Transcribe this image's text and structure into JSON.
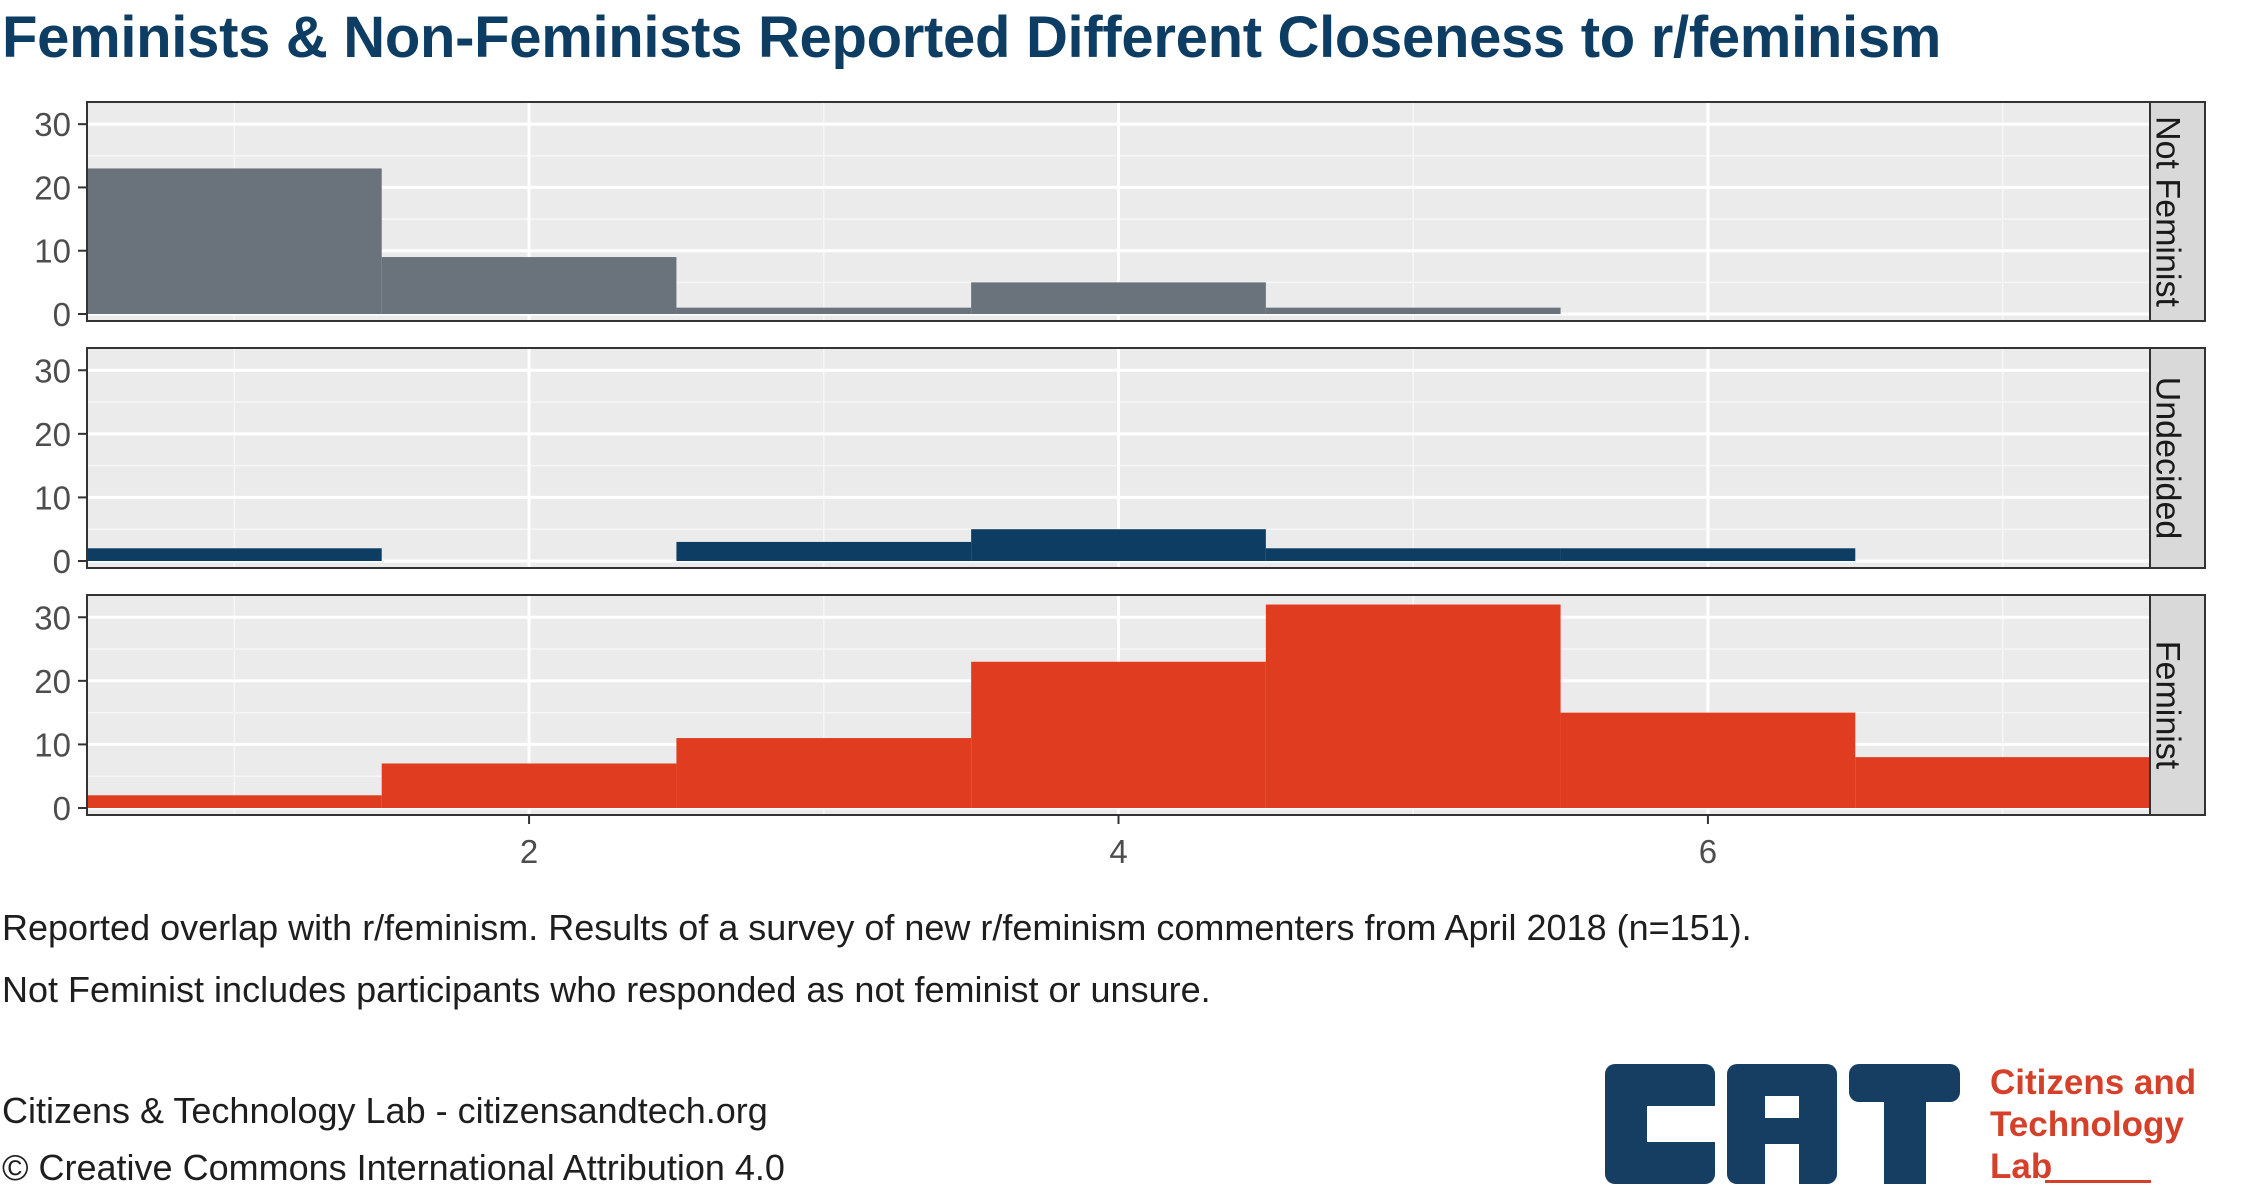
{
  "title": "Feminists & Non-Feminists Reported Different Closeness to r/feminism",
  "caption": [
    "Reported overlap with r/feminism. Results of a survey of new r/feminism commenters from April 2018 (n=151).",
    "Not Feminist includes participants who responded as not feminist or unsure."
  ],
  "credits": [
    "Citizens & Technology Lab - citizensandtech.org",
    "© Creative Commons International Attribution 4.0"
  ],
  "logo": {
    "letters": "CAT",
    "text_lines": [
      "Citizens and",
      "Technology",
      "Lab"
    ],
    "color_dark": "#153e62",
    "color_accent": "#d4402a"
  },
  "chart_data": {
    "type": "bar",
    "subtype": "faceted histogram",
    "x": [
      1,
      2,
      3,
      4,
      5,
      6,
      7
    ],
    "bin_width": 1,
    "xlim": [
      0.5,
      7.5
    ],
    "ylim": [
      0,
      32
    ],
    "x_ticks": [
      2,
      4,
      6
    ],
    "y_ticks": [
      0,
      10,
      20,
      30
    ],
    "xlabel": "",
    "ylabel": "",
    "grid": true,
    "legend": "none",
    "panel_background": "#ebebeb",
    "strip_background": "#d9d9d9",
    "series": [
      {
        "name": "Not Feminist",
        "color": "#6a737b",
        "values": [
          23,
          9,
          1,
          5,
          1,
          0,
          0
        ]
      },
      {
        "name": "Undecided",
        "color": "#0d3d63",
        "values": [
          2,
          0,
          3,
          5,
          2,
          2,
          0
        ]
      },
      {
        "name": "Feminist",
        "color": "#e03c1f",
        "values": [
          2,
          7,
          11,
          23,
          32,
          15,
          8
        ]
      }
    ]
  }
}
